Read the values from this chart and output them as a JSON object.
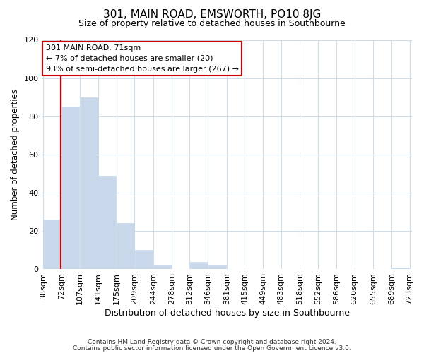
{
  "title": "301, MAIN ROAD, EMSWORTH, PO10 8JG",
  "subtitle": "Size of property relative to detached houses in Southbourne",
  "xlabel": "Distribution of detached houses by size in Southbourne",
  "ylabel": "Number of detached properties",
  "bar_color": "#c8d8ea",
  "bar_edge_color": "#c8d8ea",
  "vline_color": "#cc0000",
  "vline_x": 71,
  "bins_left": [
    38,
    72,
    107,
    141,
    175,
    209,
    244,
    278,
    312,
    346,
    381,
    415,
    449,
    483,
    518,
    552,
    586,
    620,
    655,
    689
  ],
  "bin_width": 34,
  "heights": [
    26,
    85,
    90,
    49,
    24,
    10,
    2,
    0,
    4,
    2,
    0,
    0,
    0,
    0,
    0,
    0,
    0,
    0,
    0,
    1
  ],
  "xtick_labels": [
    "38sqm",
    "72sqm",
    "107sqm",
    "141sqm",
    "175sqm",
    "209sqm",
    "244sqm",
    "278sqm",
    "312sqm",
    "346sqm",
    "381sqm",
    "415sqm",
    "449sqm",
    "483sqm",
    "518sqm",
    "552sqm",
    "586sqm",
    "620sqm",
    "655sqm",
    "689sqm",
    "723sqm"
  ],
  "ylim": [
    0,
    120
  ],
  "yticks": [
    0,
    20,
    40,
    60,
    80,
    100,
    120
  ],
  "annotation_title": "301 MAIN ROAD: 71sqm",
  "annotation_line1": "← 7% of detached houses are smaller (20)",
  "annotation_line2": "93% of semi-detached houses are larger (267) →",
  "annotation_box_color": "#ffffff",
  "annotation_box_edge_color": "#cc0000",
  "grid_color": "#d0dce8",
  "background_color": "#ffffff",
  "footer_line1": "Contains HM Land Registry data © Crown copyright and database right 2024.",
  "footer_line2": "Contains public sector information licensed under the Open Government Licence v3.0."
}
